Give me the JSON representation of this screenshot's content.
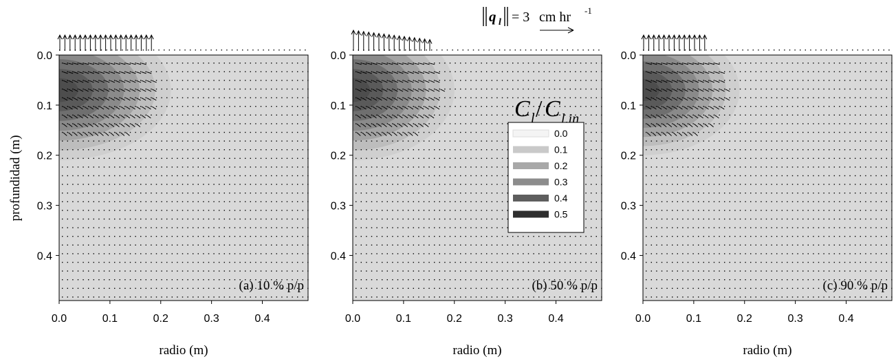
{
  "chart_data": [
    {
      "type": "heatmap",
      "panel_label": "(a) 10 % p/p",
      "xlabel": "radio (m)",
      "ylabel": "profundidad (m)",
      "xlim": [
        0.0,
        0.49
      ],
      "ylim": [
        0.0,
        0.49
      ],
      "y_inverted": true,
      "x_ticks": [
        "0.0",
        "0.1",
        "0.2",
        "0.3",
        "0.4"
      ],
      "y_ticks": [
        "0.0",
        "0.1",
        "0.2",
        "0.3",
        "0.4"
      ],
      "plume": {
        "core_depth": 0.07,
        "extent_radius": 0.22,
        "extent_depth": 0.21,
        "peak_level": 0.4
      },
      "surface_flux_arrow_extent_radius": 0.19,
      "grid": false,
      "vector_field": true
    },
    {
      "type": "heatmap",
      "panel_label": "(b) 50 % p/p",
      "xlabel": "radio (m)",
      "ylabel": "",
      "xlim": [
        0.0,
        0.49
      ],
      "ylim": [
        0.0,
        0.49
      ],
      "y_inverted": true,
      "x_ticks": [
        "0.0",
        "0.1",
        "0.2",
        "0.3",
        "0.4"
      ],
      "y_ticks": [
        "0.0",
        "0.1",
        "0.2",
        "0.3",
        "0.4"
      ],
      "plume": {
        "core_depth": 0.07,
        "extent_radius": 0.2,
        "extent_depth": 0.21,
        "peak_level": 0.4
      },
      "surface_flux_arrow_extent_radius": 0.16,
      "grid": false,
      "vector_field": true
    },
    {
      "type": "heatmap",
      "panel_label": "(c) 90 % p/p",
      "xlabel": "radio (m)",
      "ylabel": "",
      "xlim": [
        0.0,
        0.49
      ],
      "ylim": [
        0.0,
        0.49
      ],
      "y_inverted": true,
      "x_ticks": [
        "0.0",
        "0.1",
        "0.2",
        "0.3",
        "0.4"
      ],
      "y_ticks": [
        "0.0",
        "0.1",
        "0.2",
        "0.3",
        "0.4"
      ],
      "plume": {
        "core_depth": 0.07,
        "extent_radius": 0.19,
        "extent_depth": 0.2,
        "peak_level": 0.4
      },
      "surface_flux_arrow_extent_radius": 0.13,
      "grid": false,
      "vector_field": true
    }
  ],
  "legend": {
    "title_main": "C",
    "title_sub_num": "l",
    "title_den": "C",
    "title_sub_den": "l,in",
    "levels": [
      "0.0",
      "0.1",
      "0.2",
      "0.3",
      "0.4",
      "0.5"
    ],
    "colors": [
      "#f4f4f4",
      "#c9c9c9",
      "#a8a8a8",
      "#8c8c8c",
      "#5e5e5e",
      "#2e2e2e"
    ]
  },
  "flux_scale": {
    "symbol": "q",
    "subscript": "l",
    "equals": "= 3",
    "unit": "cm hr",
    "exponent": "-1"
  },
  "colors": {
    "background_field": "#d9d9d9",
    "plume": "#474747",
    "arrows": "#000000"
  }
}
